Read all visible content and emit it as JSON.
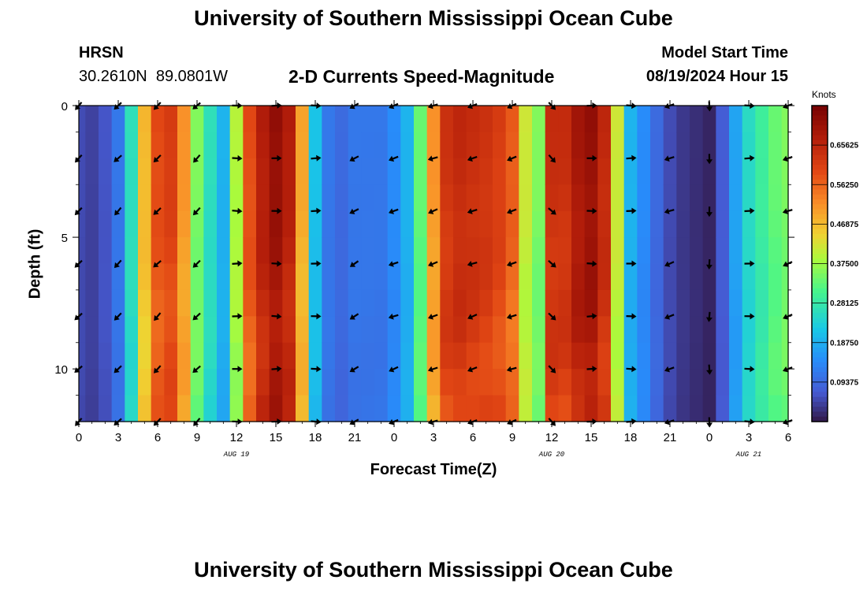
{
  "header": {
    "title": "University of Southern Mississippi Ocean Cube",
    "station": "HRSN",
    "coordinates": "30.2610N  89.0801W",
    "subtitle": "2-D Currents Speed-Magnitude",
    "model_start_label": "Model Start Time",
    "model_start_value": "08/19/2024 Hour 15"
  },
  "footer": {
    "title": "University of Southern Mississippi Ocean Cube"
  },
  "colorbar": {
    "unit": "Knots",
    "ticks": [
      "0.65625",
      "0.56250",
      "0.46875",
      "0.37500",
      "0.28125",
      "0.18750",
      "0.09375"
    ],
    "tick_values": [
      0.65625,
      0.5625,
      0.46875,
      0.375,
      0.28125,
      0.1875,
      0.09375
    ],
    "range": [
      0,
      0.75
    ]
  },
  "chart_data": {
    "type": "heatmap",
    "title": "2-D Currents Speed-Magnitude",
    "xlabel": "Forecast Time(Z)",
    "ylabel": "Depth (ft)",
    "x_range_hours": [
      0,
      54
    ],
    "x_tick_labels": [
      "0",
      "3",
      "6",
      "9",
      "12",
      "15",
      "18",
      "21",
      "0",
      "3",
      "6",
      "9",
      "12",
      "15",
      "18",
      "21",
      "0",
      "3",
      "6"
    ],
    "x_tick_hours": [
      0,
      3,
      6,
      9,
      12,
      15,
      18,
      21,
      24,
      27,
      30,
      33,
      36,
      39,
      42,
      45,
      48,
      51,
      54
    ],
    "date_labels": [
      {
        "label": "AUG 19",
        "hour": 12
      },
      {
        "label": "AUG 20",
        "hour": 36
      },
      {
        "label": "AUG 21",
        "hour": 51
      }
    ],
    "y_range_ft": [
      0,
      12
    ],
    "y_tick_labels": [
      "0",
      "5",
      "10"
    ],
    "y_tick_values": [
      0,
      5,
      10
    ],
    "speed_profile_surface_knots": {
      "hours": [
        0,
        1,
        2,
        3,
        4,
        5,
        6,
        7,
        8,
        9,
        10,
        11,
        12,
        13,
        14,
        15,
        16,
        17,
        18,
        19,
        20,
        21,
        22,
        23,
        24,
        25,
        26,
        27,
        28,
        29,
        30,
        31,
        32,
        33,
        34,
        35,
        36,
        37,
        38,
        39,
        40,
        41,
        42,
        43,
        44,
        45,
        46,
        47,
        48,
        49,
        50,
        51,
        52,
        53,
        54
      ],
      "speed": [
        0.06,
        0.05,
        0.07,
        0.12,
        0.27,
        0.48,
        0.6,
        0.62,
        0.52,
        0.36,
        0.27,
        0.2,
        0.4,
        0.6,
        0.68,
        0.72,
        0.68,
        0.5,
        0.22,
        0.12,
        0.1,
        0.12,
        0.12,
        0.12,
        0.15,
        0.2,
        0.34,
        0.52,
        0.64,
        0.66,
        0.65,
        0.64,
        0.62,
        0.58,
        0.42,
        0.36,
        0.65,
        0.65,
        0.7,
        0.72,
        0.66,
        0.42,
        0.2,
        0.15,
        0.1,
        0.06,
        0.04,
        0.03,
        0.02,
        0.08,
        0.18,
        0.26,
        0.3,
        0.34,
        0.36
      ]
    },
    "vector_depths_ft": [
      0,
      2,
      4,
      6,
      8,
      10,
      12
    ],
    "vector_hours": [
      0,
      3,
      6,
      9,
      12,
      15,
      18,
      21,
      24,
      27,
      30,
      33,
      36,
      39,
      42,
      45,
      48,
      51,
      54
    ],
    "vector_direction_deg": [
      225,
      225,
      225,
      225,
      90,
      90,
      90,
      240,
      250,
      250,
      250,
      250,
      135,
      90,
      90,
      250,
      180,
      90,
      250
    ],
    "series": [
      {
        "name": "Current speed",
        "unit": "knots"
      }
    ]
  }
}
